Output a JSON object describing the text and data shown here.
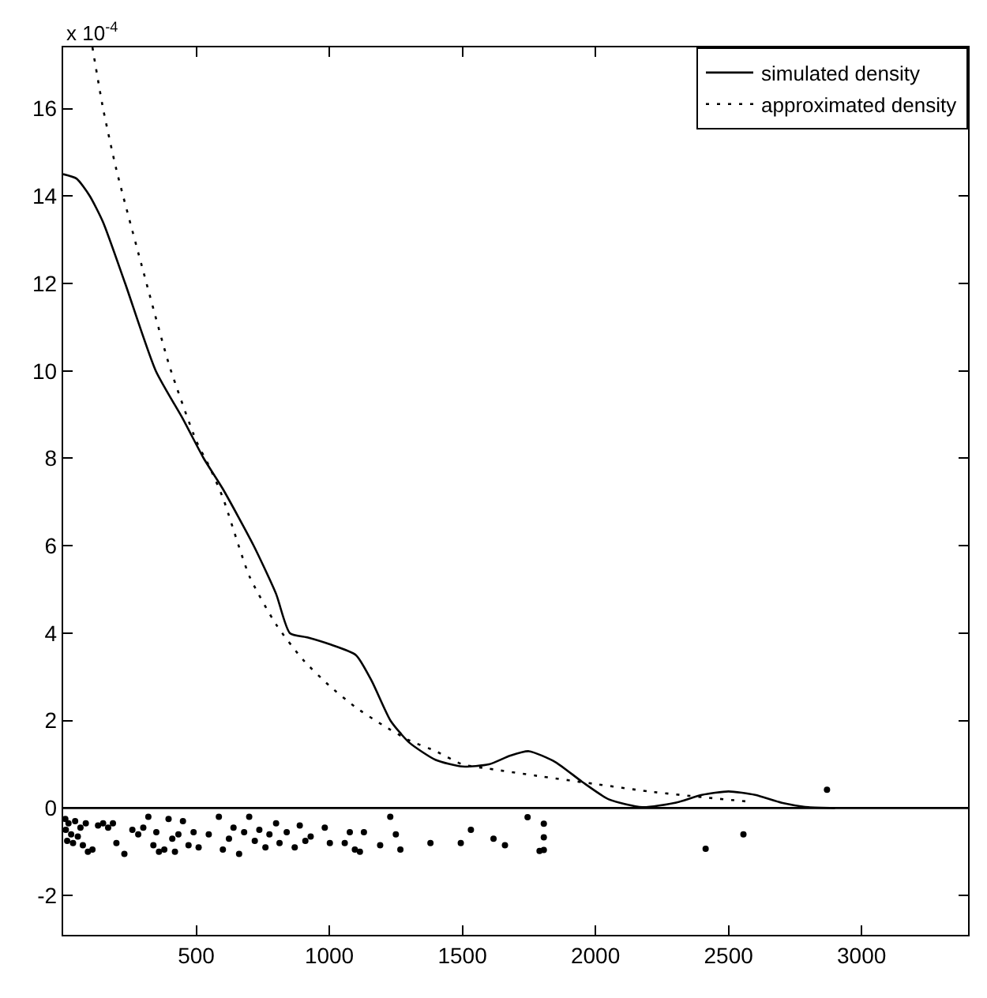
{
  "chart_data": {
    "type": "line",
    "annotations": [
      "x 10$^{-4}$"
    ],
    "xlim": [
      0,
      3400
    ],
    "xticks": [
      500,
      1000,
      1500,
      2000,
      2500,
      3000
    ],
    "ylim": [
      -2.9,
      17.4
    ],
    "yticks": [
      -2,
      0,
      2,
      4,
      6,
      8,
      10,
      12,
      14,
      16
    ],
    "legend": "top right",
    "ref_lines": [
      {
        "axis": "y",
        "value": 0,
        "color": "#000000",
        "line_style": "solid"
      }
    ],
    "series": [
      {
        "name": "simulated density",
        "color": "#000000",
        "line_style": "solid",
        "marker": "none",
        "x": [
          0,
          50,
          100,
          150,
          233,
          348,
          450,
          528,
          600,
          716,
          800,
          852,
          920,
          1000,
          1100,
          1160,
          1230,
          1300,
          1400,
          1500,
          1600,
          1680,
          1750,
          1850,
          1950,
          2050,
          2176,
          2300,
          2400,
          2500,
          2600,
          2700,
          2800,
          2900
        ],
        "values": [
          14.5,
          14.4,
          14.0,
          13.4,
          12.0,
          10.0,
          8.9,
          8.0,
          7.3,
          6.0,
          4.9,
          4.0,
          3.9,
          3.75,
          3.5,
          2.9,
          2.0,
          1.5,
          1.1,
          0.95,
          1.0,
          1.2,
          1.3,
          1.05,
          0.6,
          0.2,
          0.02,
          0.12,
          0.3,
          0.38,
          0.3,
          0.12,
          0.02,
          0
        ]
      },
      {
        "name": "approximated density",
        "color": "#000000",
        "line_style": "dotted",
        "marker": "none",
        "x": [
          110,
          150,
          200,
          300,
          400,
          500,
          550,
          600,
          700,
          800,
          900,
          1000,
          1100,
          1200,
          1300,
          1400,
          1500,
          1600,
          1800,
          2000,
          2200,
          2400,
          2570
        ],
        "values": [
          17.4,
          16.0,
          14.6,
          12.3,
          10.1,
          8.4,
          7.8,
          7.1,
          5.3,
          4.2,
          3.4,
          2.8,
          2.3,
          1.9,
          1.55,
          1.3,
          1.0,
          0.9,
          0.72,
          0.55,
          0.38,
          0.25,
          0.15
        ]
      },
      {
        "type": "scatter",
        "color": "#000000",
        "marker": "circle",
        "x": [
          8,
          10,
          15,
          20,
          30,
          37,
          45,
          55,
          65,
          74,
          85,
          93,
          110,
          131,
          150,
          169,
          187,
          200,
          230,
          260,
          282,
          301,
          320,
          339,
          350,
          360,
          380,
          396,
          410,
          420,
          433,
          450,
          471,
          490,
          509,
          547,
          585,
          600,
          623,
          640,
          661,
          680,
          699,
          720,
          737,
          760,
          775,
          800,
          813,
          840,
          870,
          889,
          910,
          930,
          983,
          1002,
          1058,
          1077,
          1096,
          1115,
          1130,
          1191,
          1229,
          1250,
          1267,
          1380,
          1494,
          1532,
          1617,
          1660,
          1745,
          1790,
          1806,
          1806,
          1806,
          2414,
          2556,
          2870
        ],
        "values": [
          -0.25,
          -0.5,
          -0.75,
          -0.35,
          -0.6,
          -0.8,
          -0.3,
          -0.65,
          -0.45,
          -0.85,
          -0.35,
          -1.0,
          -0.95,
          -0.4,
          -0.35,
          -0.45,
          -0.35,
          -0.8,
          -1.05,
          -0.5,
          -0.6,
          -0.45,
          -0.2,
          -0.85,
          -0.55,
          -1.0,
          -0.95,
          -0.25,
          -0.7,
          -1.0,
          -0.6,
          -0.3,
          -0.85,
          -0.55,
          -0.9,
          -0.6,
          -0.2,
          -0.95,
          -0.7,
          -0.45,
          -1.05,
          -0.55,
          -0.2,
          -0.75,
          -0.5,
          -0.9,
          -0.6,
          -0.35,
          -0.8,
          -0.55,
          -0.9,
          -0.4,
          -0.75,
          -0.65,
          -0.45,
          -0.8,
          -0.8,
          -0.55,
          -0.95,
          -1.0,
          -0.55,
          -0.85,
          -0.2,
          -0.6,
          -0.95,
          -0.8,
          -0.8,
          -0.5,
          -0.7,
          -0.85,
          -0.21,
          -0.98,
          -0.36,
          -0.67,
          -0.96,
          -0.93,
          -0.6,
          0.42
        ]
      }
    ]
  }
}
